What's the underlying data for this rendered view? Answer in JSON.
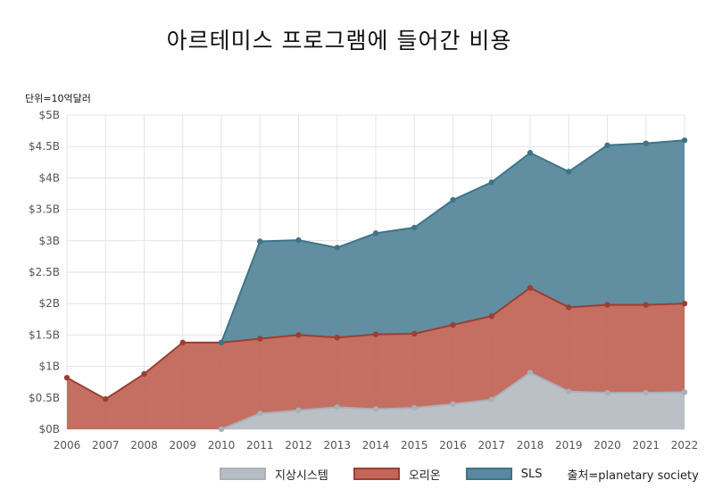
{
  "title": "아르테미스 프로그램에 들어간 비용",
  "unit_note": "단위=10억달러",
  "source_note": "출처=planetary society",
  "chart_data": {
    "type": "area",
    "stacked": true,
    "x": [
      "2006",
      "2007",
      "2008",
      "2009",
      "2010",
      "2011",
      "2012",
      "2013",
      "2014",
      "2015",
      "2016",
      "2017",
      "2018",
      "2019",
      "2020",
      "2021",
      "2022"
    ],
    "y_ticks": [
      "$0B",
      "$0.5B",
      "$1B",
      "$1.5B",
      "$2B",
      "$2.5B",
      "$3B",
      "$3.5B",
      "$4B",
      "$4.5B",
      "$5B"
    ],
    "ylim": [
      0,
      5
    ],
    "grid": true,
    "legend_position": "bottom",
    "series": [
      {
        "name": "지상시스템",
        "color": "#b7bdc4",
        "stroke": "#a9b0b8",
        "values": [
          null,
          null,
          null,
          null,
          0.0,
          0.25,
          0.3,
          0.35,
          0.32,
          0.34,
          0.4,
          0.47,
          0.9,
          0.6,
          0.58,
          0.58,
          0.59
        ]
      },
      {
        "name": "오리온",
        "color": "#c1675a",
        "stroke": "#9c3e33",
        "values": [
          0.82,
          0.48,
          0.88,
          1.38,
          1.38,
          1.19,
          1.2,
          1.11,
          1.19,
          1.18,
          1.26,
          1.33,
          1.35,
          1.34,
          1.4,
          1.4,
          1.41
        ]
      },
      {
        "name": "SLS",
        "color": "#5a889c",
        "stroke": "#3f7489",
        "values": [
          null,
          null,
          null,
          null,
          0.0,
          1.55,
          1.51,
          1.43,
          1.61,
          1.69,
          1.99,
          2.13,
          2.15,
          2.16,
          2.54,
          2.57,
          2.6
        ]
      }
    ]
  }
}
